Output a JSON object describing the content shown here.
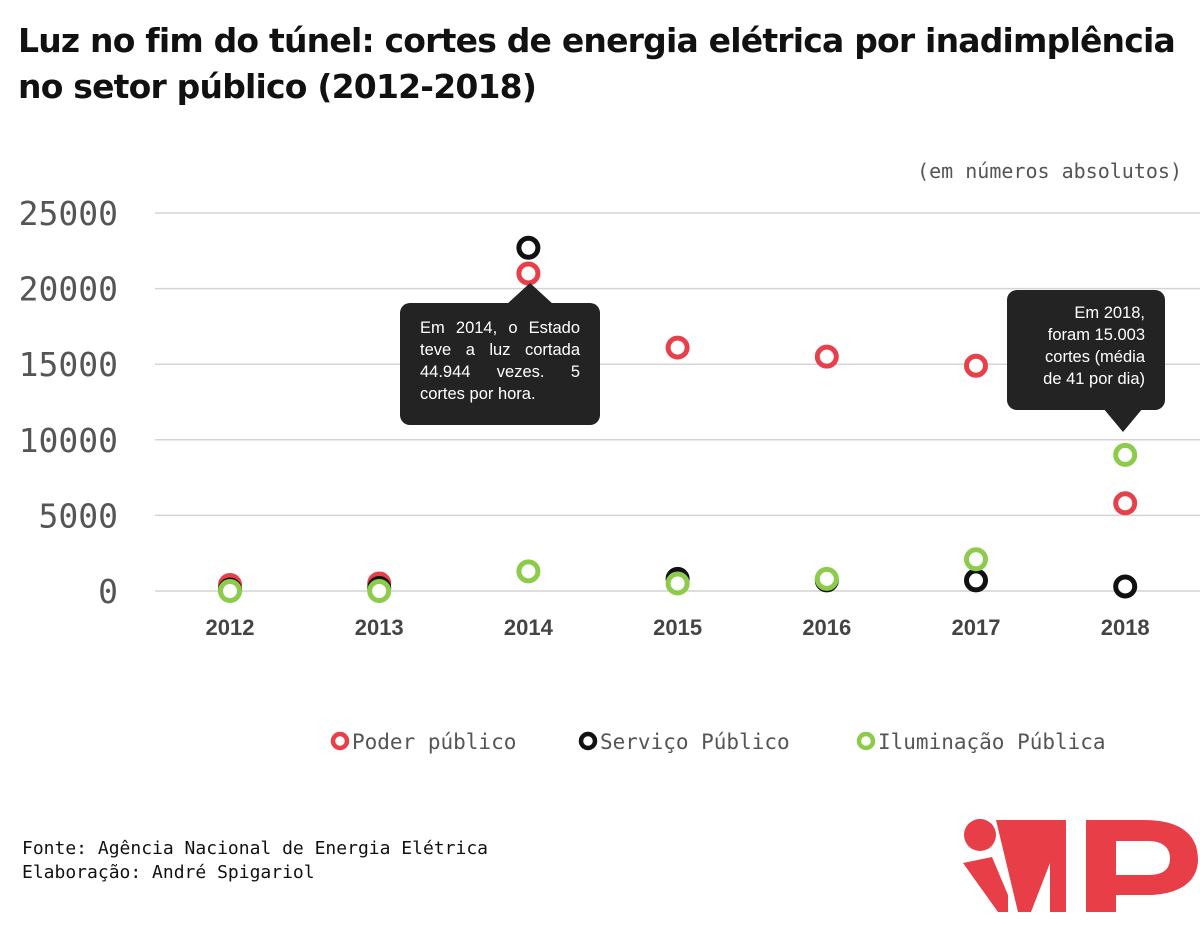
{
  "title": "Luz no fim do túnel: cortes de energia elétrica por inadimplência no setor público (2012-2018)",
  "unit_note": "(em números absolutos)",
  "colors": {
    "poder_publico": "#e8404a",
    "servico_publico": "#111111",
    "iluminacao_publica": "#8dcb4a",
    "gridline": "#d4d4d4",
    "callout_bg": "#232323",
    "logo": "#e83e48"
  },
  "chart_data": {
    "type": "scatter",
    "title": "Luz no fim do túnel: cortes de energia elétrica por inadimplência no setor público (2012-2018)",
    "xlabel": "",
    "ylabel": "",
    "categories": [
      "2012",
      "2013",
      "2014",
      "2015",
      "2016",
      "2017",
      "2018"
    ],
    "yticks": [
      "0",
      "5000",
      "10000",
      "15000",
      "20000",
      "25000"
    ],
    "ylim": [
      0,
      25000
    ],
    "grid": true,
    "legend_position": "bottom",
    "series": [
      {
        "name": "Poder público",
        "color": "#e8404a",
        "values": [
          400,
          500,
          21000,
          16100,
          15500,
          14900,
          5800
        ]
      },
      {
        "name": "Serviço Público",
        "color": "#111111",
        "values": [
          100,
          200,
          22700,
          800,
          700,
          700,
          300
        ]
      },
      {
        "name": "Iluminação Pública",
        "color": "#8dcb4a",
        "values": [
          0,
          0,
          1300,
          500,
          800,
          2100,
          9000
        ]
      }
    ]
  },
  "callouts": [
    {
      "id": "2014",
      "text": "Em 2014, o Estado teve a luz cortada 44.944 vezes. 5 cortes por hora."
    },
    {
      "id": "2018",
      "lines": [
        "Em 2018,",
        "foram 15.003",
        "cortes (média",
        "de 41 por dia)"
      ]
    }
  ],
  "footer": {
    "source": "Fonte: Agência Nacional de Energia Elétrica",
    "credit": "Elaboração: André Spigariol"
  },
  "logo": {
    "icon": "imp-logo"
  }
}
